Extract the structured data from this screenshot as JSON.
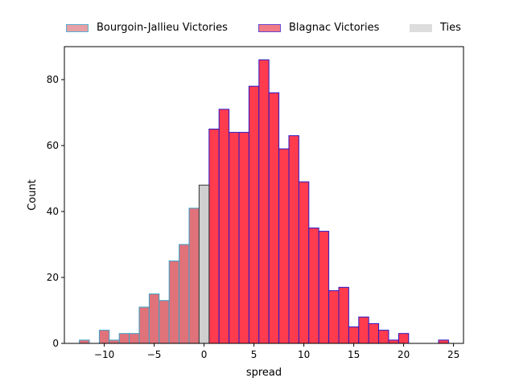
{
  "chart_data": {
    "type": "bar",
    "xlabel": "spread",
    "ylabel": "Count",
    "xlim": [
      -14,
      26
    ],
    "ylim": [
      0,
      90
    ],
    "xticks": [
      -10,
      -5,
      0,
      5,
      10,
      15,
      20,
      25
    ],
    "yticks": [
      0,
      20,
      40,
      60,
      80
    ],
    "bin_width": 1,
    "legend_position": "top",
    "series": [
      {
        "name": "Bourgoin-Jallieu Victories",
        "fill": "#e0727a",
        "edge": "#3aa3c8",
        "bins": [
          {
            "x": -12,
            "y": 1
          },
          {
            "x": -11,
            "y": 0
          },
          {
            "x": -10,
            "y": 4
          },
          {
            "x": -9,
            "y": 1
          },
          {
            "x": -8,
            "y": 3
          },
          {
            "x": -7,
            "y": 3
          },
          {
            "x": -6,
            "y": 11
          },
          {
            "x": -5,
            "y": 15
          },
          {
            "x": -4,
            "y": 13
          },
          {
            "x": -3,
            "y": 25
          },
          {
            "x": -2,
            "y": 30
          },
          {
            "x": -1,
            "y": 41
          }
        ]
      },
      {
        "name": "Blagnac Victories",
        "fill": "#ff3b4e",
        "edge": "#2a18c8",
        "bins": [
          {
            "x": 1,
            "y": 65
          },
          {
            "x": 2,
            "y": 71
          },
          {
            "x": 3,
            "y": 64
          },
          {
            "x": 4,
            "y": 64
          },
          {
            "x": 5,
            "y": 78
          },
          {
            "x": 6,
            "y": 86
          },
          {
            "x": 7,
            "y": 76
          },
          {
            "x": 8,
            "y": 59
          },
          {
            "x": 9,
            "y": 63
          },
          {
            "x": 10,
            "y": 49
          },
          {
            "x": 11,
            "y": 35
          },
          {
            "x": 12,
            "y": 34
          },
          {
            "x": 13,
            "y": 16
          },
          {
            "x": 14,
            "y": 17
          },
          {
            "x": 15,
            "y": 5
          },
          {
            "x": 16,
            "y": 8
          },
          {
            "x": 17,
            "y": 6
          },
          {
            "x": 18,
            "y": 4
          },
          {
            "x": 19,
            "y": 1
          },
          {
            "x": 20,
            "y": 3
          },
          {
            "x": 21,
            "y": 0
          },
          {
            "x": 22,
            "y": 0
          },
          {
            "x": 23,
            "y": 0
          },
          {
            "x": 24,
            "y": 1
          }
        ]
      },
      {
        "name": "Ties",
        "fill": "#cfcfcf",
        "edge": "#333333",
        "bins": [
          {
            "x": 0,
            "y": 48
          }
        ]
      }
    ]
  }
}
